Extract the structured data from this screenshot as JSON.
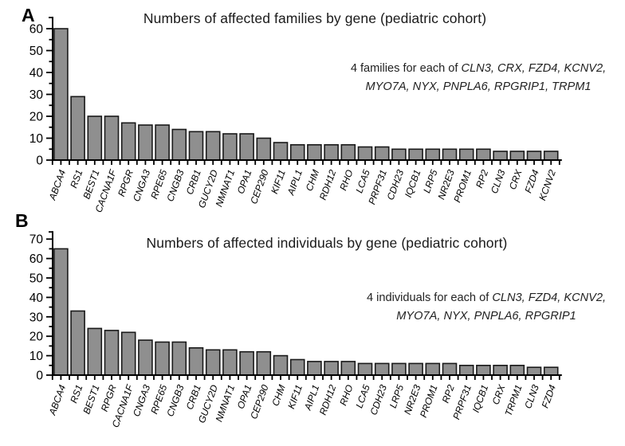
{
  "figure": {
    "background": "#ffffff",
    "bar_fill": "#8f8f8f",
    "bar_stroke": "#1a1a1a",
    "axis_color": "#000000",
    "panels": [
      {
        "label": "A",
        "title": "Numbers of affected families by gene (pediatric cohort)",
        "annotation_prefix": "4 families for each of ",
        "annotation_genes_line1": "CLN3, CRX, FZD4, KCNV2,",
        "annotation_line2": "MYO7A, NYX, PNPLA6, RPGRIP1, TRPM1"
      },
      {
        "label": "B",
        "title": "Numbers of affected individuals by gene (pediatric cohort)",
        "annotation_prefix": "4 individuals  for each of ",
        "annotation_genes_line1": "CLN3, FZD4, KCNV2,",
        "annotation_line2": "MYO7A, NYX, PNPLA6, RPGRIP1"
      }
    ]
  },
  "chart_data": [
    {
      "type": "bar",
      "title": "Numbers of affected families by gene (pediatric cohort)",
      "xlabel": "",
      "ylabel": "",
      "ylim": [
        0,
        60
      ],
      "ytick_labels": [
        0,
        10,
        20,
        30,
        40,
        50,
        60
      ],
      "ytick_minor_step": 5,
      "grid": false,
      "legend": false,
      "annotation": "4 families for each of CLN3, CRX, FZD4, KCNV2, MYO7A, NYX, PNPLA6, RPGRIP1, TRPM1",
      "categories": [
        "ABCA4",
        "RS1",
        "BEST1",
        "CACNA1F",
        "RPGR",
        "CNGA3",
        "RPE65",
        "CNGB3",
        "CRB1",
        "GUCY2D",
        "NMNAT1",
        "OPA1",
        "CEP290",
        "KIF11",
        "AIPL1",
        "CHM",
        "RDH12",
        "RHO",
        "LCA5",
        "PRPF31",
        "CDH23",
        "IQCB1",
        "LRP5",
        "NR2E3",
        "PROM1",
        "RP2",
        "CLN3",
        "CRX",
        "FZD4",
        "KCNV2"
      ],
      "values": [
        60,
        29,
        20,
        20,
        17,
        16,
        16,
        14,
        13,
        13,
        12,
        12,
        10,
        8,
        7,
        7,
        7,
        7,
        6,
        6,
        5,
        5,
        5,
        5,
        5,
        5,
        4,
        4,
        4,
        4
      ]
    },
    {
      "type": "bar",
      "title": "Numbers of affected individuals by gene (pediatric cohort)",
      "xlabel": "",
      "ylabel": "",
      "ylim": [
        0,
        70
      ],
      "ytick_labels": [
        0,
        10,
        20,
        30,
        40,
        50,
        60,
        70
      ],
      "ytick_minor_step": 5,
      "grid": false,
      "legend": false,
      "annotation": "4 individuals for each of CLN3, FZD4, KCNV2, MYO7A, NYX, PNPLA6, RPGRIP1",
      "categories": [
        "ABCA4",
        "RS1",
        "BEST1",
        "RPGR",
        "CACNA1F",
        "CNGA3",
        "RPE65",
        "CNGB3",
        "CRB1",
        "GUCY2D",
        "NMNAT1",
        "OPA1",
        "CEP290",
        "CHM",
        "KIF11",
        "AIPL1",
        "RDH12",
        "RHO",
        "LCA5",
        "CDH23",
        "LRP5",
        "NR2E3",
        "PROM1",
        "RP2",
        "PRPF31",
        "IQCB1",
        "CRX",
        "TRPM1",
        "CLN3",
        "FZD4"
      ],
      "values": [
        65,
        33,
        24,
        23,
        22,
        18,
        17,
        17,
        14,
        13,
        13,
        12,
        12,
        10,
        8,
        7,
        7,
        7,
        6,
        6,
        6,
        6,
        6,
        6,
        5,
        5,
        5,
        5,
        4,
        4
      ]
    }
  ]
}
